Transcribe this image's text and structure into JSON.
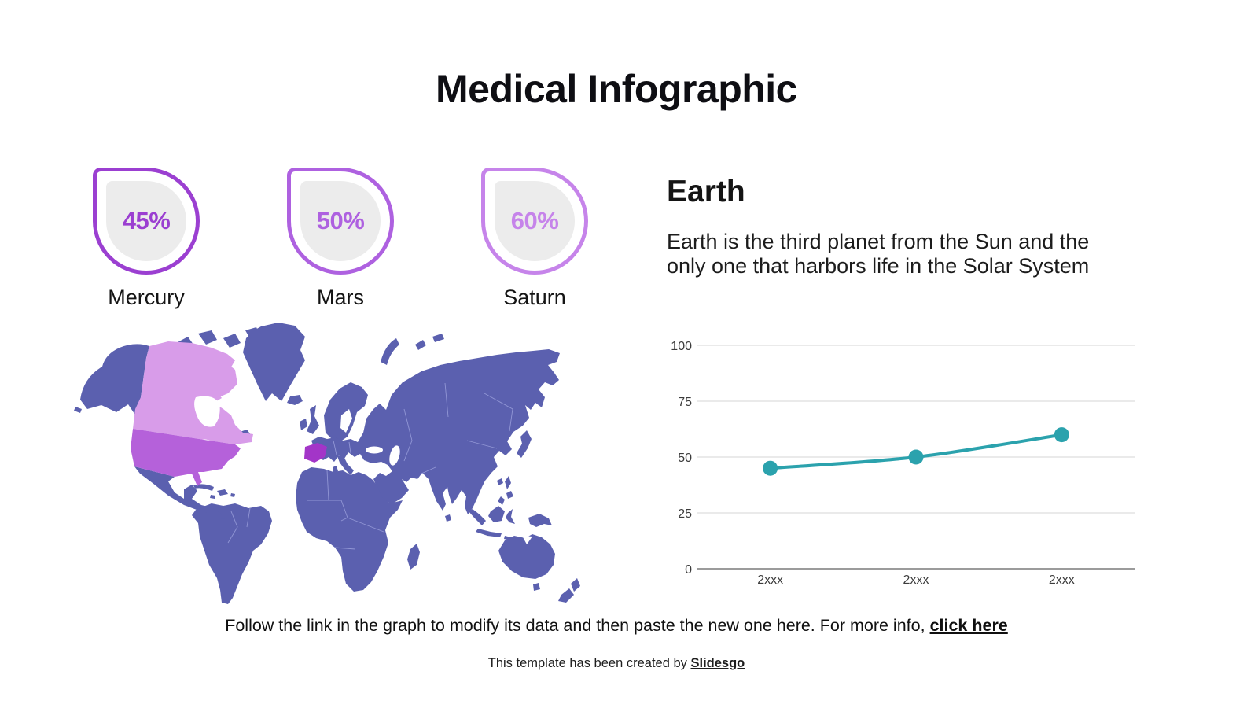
{
  "title": "Medical Infographic",
  "stats": [
    {
      "value": "45%",
      "label": "Mercury",
      "color": "#9b3fd1"
    },
    {
      "value": "50%",
      "label": "Mars",
      "color": "#ae61e0"
    },
    {
      "value": "60%",
      "label": "Saturn",
      "color": "#c684ea"
    }
  ],
  "earth": {
    "heading": "Earth",
    "description": "Earth is the third planet from the Sun and the\nonly one that harbors life in the Solar System"
  },
  "map": {
    "base_color": "#5b60af",
    "border_color": "#9ba0dc",
    "highlights": [
      {
        "region": "Canada",
        "color": "#d89ce9"
      },
      {
        "region": "United States",
        "color": "#b561da"
      },
      {
        "region": "Spain",
        "color": "#a335c8"
      }
    ]
  },
  "chart_data": {
    "type": "line",
    "title": "",
    "x": [
      "2xxx",
      "2xxx",
      "2xxx"
    ],
    "series": [
      {
        "name": "Earth",
        "values": [
          45,
          50,
          60
        ]
      }
    ],
    "ylim": [
      0,
      100
    ],
    "yticks": [
      0,
      25,
      50,
      75,
      100
    ],
    "grid": true,
    "legend": "none",
    "line_color": "#2ba2ad",
    "grid_color": "#e4e4e4",
    "axis_color": "#9b9b9b",
    "tick_label_color": "#3c3c3c"
  },
  "footer": {
    "instruction_prefix": "Follow the link in the graph to modify its data and then paste the new one here. For more info, ",
    "instruction_link": "click here",
    "credit_prefix": "This template has been created by ",
    "credit_link": "Slidesgo"
  }
}
